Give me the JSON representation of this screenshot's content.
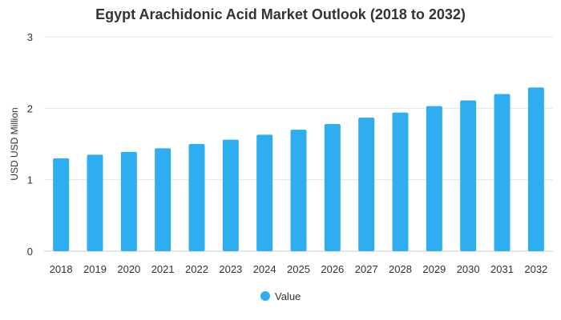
{
  "chart_data": {
    "type": "bar",
    "title": "Egypt Arachidonic Acid Market Outlook (2018 to 2032)",
    "xlabel": "",
    "ylabel": "USD USD Million",
    "categories": [
      "2018",
      "2019",
      "2020",
      "2021",
      "2022",
      "2023",
      "2024",
      "2025",
      "2026",
      "2027",
      "2028",
      "2029",
      "2030",
      "2031",
      "2032"
    ],
    "series": [
      {
        "name": "Value",
        "values": [
          1.3,
          1.35,
          1.39,
          1.44,
          1.5,
          1.56,
          1.63,
          1.7,
          1.78,
          1.87,
          1.94,
          2.03,
          2.11,
          2.2,
          2.29
        ]
      }
    ],
    "ylim": [
      0,
      3
    ],
    "yticks": [
      0,
      1,
      2,
      3
    ],
    "grid": true,
    "legend_position": "bottom",
    "colors": {
      "bar": "#2eaef0",
      "grid": "#e6e6e6",
      "text": "#333333"
    }
  }
}
